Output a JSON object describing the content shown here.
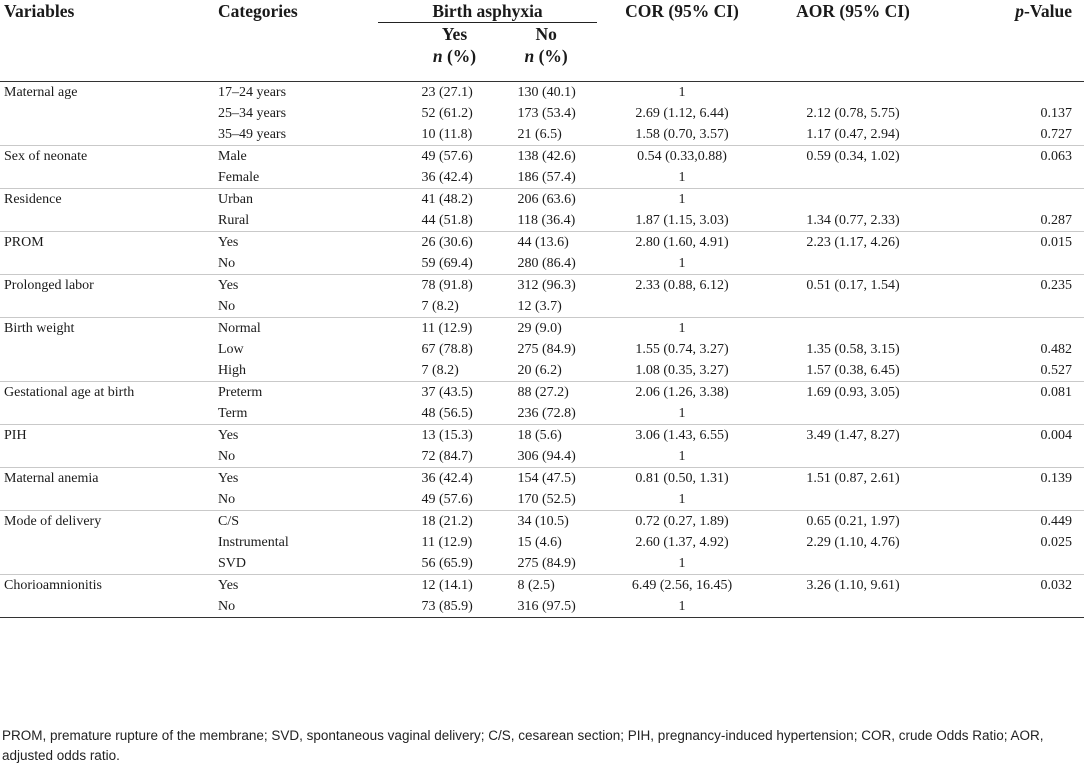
{
  "table": {
    "headers": {
      "variables": "Variables",
      "categories": "Categories",
      "birth_asphyxia": "Birth asphyxia",
      "yes": "Yes",
      "no": "No",
      "n_label": "n",
      "pct_label": " (%)",
      "cor": "COR (95% CI)",
      "aor": "AOR (95% CI)",
      "p_prefix": "p",
      "p_suffix": "-Value"
    },
    "groups": [
      {
        "variable": "Maternal age",
        "rows": [
          {
            "category": "17–24 years",
            "yes": "23 (27.1)",
            "no": "130 (40.1)",
            "cor": "1",
            "aor": "",
            "p": ""
          },
          {
            "category": "25–34 years",
            "yes": "52 (61.2)",
            "no": "173 (53.4)",
            "cor": "2.69 (1.12, 6.44)",
            "aor": "2.12 (0.78, 5.75)",
            "p": "0.137"
          },
          {
            "category": "35–49 years",
            "yes": "10 (11.8)",
            "no": "21 (6.5)",
            "cor": "1.58 (0.70, 3.57)",
            "aor": "1.17 (0.47, 2.94)",
            "p": "0.727"
          }
        ]
      },
      {
        "variable": "Sex of neonate",
        "rows": [
          {
            "category": "Male",
            "yes": "49 (57.6)",
            "no": "138 (42.6)",
            "cor": "0.54 (0.33,0.88)",
            "aor": "0.59 (0.34, 1.02)",
            "p": "0.063"
          },
          {
            "category": "Female",
            "yes": "36 (42.4)",
            "no": "186 (57.4)",
            "cor": "1",
            "aor": "",
            "p": ""
          }
        ]
      },
      {
        "variable": "Residence",
        "rows": [
          {
            "category": "Urban",
            "yes": "41 (48.2)",
            "no": "206 (63.6)",
            "cor": "1",
            "aor": "",
            "p": ""
          },
          {
            "category": "Rural",
            "yes": "44 (51.8)",
            "no": "118 (36.4)",
            "cor": "1.87 (1.15, 3.03)",
            "aor": "1.34 (0.77, 2.33)",
            "p": "0.287"
          }
        ]
      },
      {
        "variable": "PROM",
        "rows": [
          {
            "category": "Yes",
            "yes": "26 (30.6)",
            "no": "44 (13.6)",
            "cor": "2.80 (1.60, 4.91)",
            "aor": "2.23 (1.17, 4.26)",
            "p": "0.015"
          },
          {
            "category": "No",
            "yes": "59 (69.4)",
            "no": "280 (86.4)",
            "cor": "1",
            "aor": "",
            "p": ""
          }
        ]
      },
      {
        "variable": "Prolonged labor",
        "rows": [
          {
            "category": "Yes",
            "yes": "78 (91.8)",
            "no": "312 (96.3)",
            "cor": "2.33 (0.88, 6.12)",
            "aor": "0.51 (0.17, 1.54)",
            "p": "0.235"
          },
          {
            "category": "No",
            "yes": "7 (8.2)",
            "no": "12 (3.7)",
            "cor": "",
            "aor": "",
            "p": ""
          }
        ]
      },
      {
        "variable": "Birth weight",
        "rows": [
          {
            "category": "Normal",
            "yes": "11 (12.9)",
            "no": "29 (9.0)",
            "cor": "1",
            "aor": "",
            "p": ""
          },
          {
            "category": "Low",
            "yes": "67 (78.8)",
            "no": "275 (84.9)",
            "cor": "1.55 (0.74, 3.27)",
            "aor": "1.35 (0.58, 3.15)",
            "p": "0.482"
          },
          {
            "category": "High",
            "yes": "7 (8.2)",
            "no": "20 (6.2)",
            "cor": "1.08 (0.35, 3.27)",
            "aor": "1.57 (0.38, 6.45)",
            "p": "0.527"
          }
        ]
      },
      {
        "variable": "Gestational age at birth",
        "rows": [
          {
            "category": "Preterm",
            "yes": "37 (43.5)",
            "no": "88 (27.2)",
            "cor": "2.06 (1.26, 3.38)",
            "aor": "1.69 (0.93, 3.05)",
            "p": "0.081"
          },
          {
            "category": "Term",
            "yes": "48 (56.5)",
            "no": "236 (72.8)",
            "cor": "1",
            "aor": "",
            "p": ""
          }
        ]
      },
      {
        "variable": "PIH",
        "rows": [
          {
            "category": "Yes",
            "yes": "13 (15.3)",
            "no": "18 (5.6)",
            "cor": "3.06 (1.43, 6.55)",
            "aor": "3.49 (1.47, 8.27)",
            "p": "0.004"
          },
          {
            "category": "No",
            "yes": "72 (84.7)",
            "no": "306 (94.4)",
            "cor": "1",
            "aor": "",
            "p": ""
          }
        ]
      },
      {
        "variable": "Maternal anemia",
        "rows": [
          {
            "category": "Yes",
            "yes": "36 (42.4)",
            "no": "154 (47.5)",
            "cor": "0.81 (0.50, 1.31)",
            "aor": "1.51 (0.87, 2.61)",
            "p": "0.139"
          },
          {
            "category": "No",
            "yes": "49 (57.6)",
            "no": "170 (52.5)",
            "cor": "1",
            "aor": "",
            "p": ""
          }
        ]
      },
      {
        "variable": "Mode of delivery",
        "rows": [
          {
            "category": "C/S",
            "yes": "18 (21.2)",
            "no": "34 (10.5)",
            "cor": "0.72 (0.27, 1.89)",
            "aor": "0.65 (0.21, 1.97)",
            "p": "0.449"
          },
          {
            "category": "Instrumental",
            "yes": "11 (12.9)",
            "no": "15 (4.6)",
            "cor": "2.60 (1.37, 4.92)",
            "aor": "2.29 (1.10, 4.76)",
            "p": "0.025"
          },
          {
            "category": "SVD",
            "yes": "56 (65.9)",
            "no": "275 (84.9)",
            "cor": "1",
            "aor": "",
            "p": ""
          }
        ]
      },
      {
        "variable": "Chorioamnionitis",
        "rows": [
          {
            "category": "Yes",
            "yes": "12 (14.1)",
            "no": "8 (2.5)",
            "cor": "6.49 (2.56, 16.45)",
            "aor": "3.26 (1.10, 9.61)",
            "p": "0.032"
          },
          {
            "category": "No",
            "yes": "73 (85.9)",
            "no": "316 (97.5)",
            "cor": "1",
            "aor": "",
            "p": ""
          }
        ]
      }
    ]
  },
  "footnote": "PROM, premature rupture of the membrane; SVD, spontaneous vaginal delivery; C/S, cesarean section; PIH, pregnancy-induced hypertension; COR, crude Odds Ratio; AOR, adjusted odds ratio."
}
